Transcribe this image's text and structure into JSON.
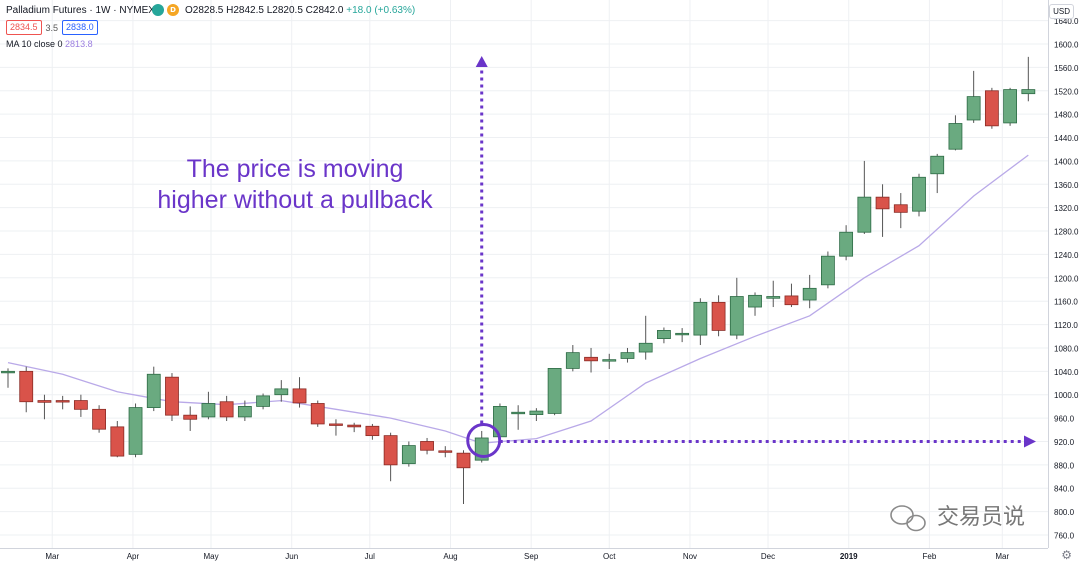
{
  "header": {
    "title": "Palladium Futures · 1W · NYMEX",
    "dot1": "",
    "dot2": "D",
    "ohlc": "O2828.5 H2842.5 L2820.5 C2842.0",
    "change": "+18.0 (+0.63%)",
    "bid": "2834.5",
    "spread": "3.5",
    "ask": "2838.0",
    "ma_label": "MA 10 close 0",
    "ma_value": "2813.8",
    "currency": "USD"
  },
  "colors": {
    "up": "#6aaa80",
    "up_stroke": "#2d6b45",
    "down": "#d9534a",
    "down_stroke": "#8a2b25",
    "ma": "#b9a9e8",
    "annotation": "#6a35c9",
    "grid": "#eef0f3"
  },
  "annotation": {
    "line1": "The price is moving",
    "line2": "higher without a pullback",
    "marker_level": 920,
    "marker_date": "2018-08-13"
  },
  "watermark": "交易员说",
  "chart_data": {
    "type": "candlestick",
    "interval": "1W",
    "ylim": [
      730,
      1640
    ],
    "y_ticks": [
      760,
      800,
      840,
      880,
      920,
      960,
      1000,
      1040,
      1080,
      1120,
      1160,
      1200,
      1240,
      1280,
      1320,
      1360,
      1400,
      1440,
      1480,
      1520,
      1560,
      1600,
      1640
    ],
    "x_labels": [
      {
        "label": "Mar",
        "date": "2018-03-01"
      },
      {
        "label": "Apr",
        "date": "2018-04-01"
      },
      {
        "label": "May",
        "date": "2018-05-01"
      },
      {
        "label": "Jun",
        "date": "2018-06-01"
      },
      {
        "label": "Jul",
        "date": "2018-07-01"
      },
      {
        "label": "Aug",
        "date": "2018-08-01"
      },
      {
        "label": "Sep",
        "date": "2018-09-01"
      },
      {
        "label": "Oct",
        "date": "2018-10-01"
      },
      {
        "label": "Nov",
        "date": "2018-11-01"
      },
      {
        "label": "Dec",
        "date": "2018-12-01"
      },
      {
        "label": "2019",
        "date": "2019-01-01"
      },
      {
        "label": "Feb",
        "date": "2019-02-01"
      },
      {
        "label": "Mar",
        "date": "2019-03-01"
      }
    ],
    "candles": [
      {
        "date": "2018-02-12",
        "o": 1040,
        "h": 1045,
        "l": 1012,
        "c": 1040
      },
      {
        "date": "2018-02-19",
        "o": 1040,
        "h": 1048,
        "l": 970,
        "c": 988
      },
      {
        "date": "2018-02-26",
        "o": 990,
        "h": 1000,
        "l": 958,
        "c": 987
      },
      {
        "date": "2018-03-05",
        "o": 990,
        "h": 998,
        "l": 975,
        "c": 988
      },
      {
        "date": "2018-03-12",
        "o": 990,
        "h": 1000,
        "l": 962,
        "c": 975
      },
      {
        "date": "2018-03-19",
        "o": 975,
        "h": 982,
        "l": 935,
        "c": 941
      },
      {
        "date": "2018-03-26",
        "o": 945,
        "h": 955,
        "l": 893,
        "c": 895
      },
      {
        "date": "2018-04-02",
        "o": 898,
        "h": 985,
        "l": 893,
        "c": 978
      },
      {
        "date": "2018-04-09",
        "o": 978,
        "h": 1048,
        "l": 972,
        "c": 1035
      },
      {
        "date": "2018-04-16",
        "o": 1030,
        "h": 1037,
        "l": 955,
        "c": 965
      },
      {
        "date": "2018-04-23",
        "o": 965,
        "h": 980,
        "l": 938,
        "c": 958
      },
      {
        "date": "2018-04-30",
        "o": 962,
        "h": 1005,
        "l": 958,
        "c": 985
      },
      {
        "date": "2018-05-07",
        "o": 988,
        "h": 998,
        "l": 955,
        "c": 962
      },
      {
        "date": "2018-05-14",
        "o": 962,
        "h": 990,
        "l": 955,
        "c": 980
      },
      {
        "date": "2018-05-21",
        "o": 980,
        "h": 1002,
        "l": 975,
        "c": 998
      },
      {
        "date": "2018-05-28",
        "o": 1000,
        "h": 1025,
        "l": 988,
        "c": 1010
      },
      {
        "date": "2018-06-04",
        "o": 1010,
        "h": 1030,
        "l": 978,
        "c": 986
      },
      {
        "date": "2018-06-11",
        "o": 985,
        "h": 990,
        "l": 945,
        "c": 950
      },
      {
        "date": "2018-06-18",
        "o": 950,
        "h": 958,
        "l": 930,
        "c": 948
      },
      {
        "date": "2018-06-25",
        "o": 948,
        "h": 952,
        "l": 936,
        "c": 945
      },
      {
        "date": "2018-07-02",
        "o": 946,
        "h": 950,
        "l": 923,
        "c": 930
      },
      {
        "date": "2018-07-09",
        "o": 930,
        "h": 935,
        "l": 852,
        "c": 880
      },
      {
        "date": "2018-07-16",
        "o": 882,
        "h": 920,
        "l": 877,
        "c": 913
      },
      {
        "date": "2018-07-23",
        "o": 920,
        "h": 926,
        "l": 898,
        "c": 905
      },
      {
        "date": "2018-07-30",
        "o": 904,
        "h": 912,
        "l": 893,
        "c": 903
      },
      {
        "date": "2018-08-06",
        "o": 900,
        "h": 905,
        "l": 813,
        "c": 875
      },
      {
        "date": "2018-08-13",
        "o": 888,
        "h": 938,
        "l": 884,
        "c": 926
      },
      {
        "date": "2018-08-20",
        "o": 928,
        "h": 985,
        "l": 925,
        "c": 980
      },
      {
        "date": "2018-08-27",
        "o": 969,
        "h": 982,
        "l": 940,
        "c": 970
      },
      {
        "date": "2018-09-03",
        "o": 966,
        "h": 977,
        "l": 955,
        "c": 972
      },
      {
        "date": "2018-09-10",
        "o": 968,
        "h": 1045,
        "l": 965,
        "c": 1045
      },
      {
        "date": "2018-09-17",
        "o": 1045,
        "h": 1085,
        "l": 1040,
        "c": 1072
      },
      {
        "date": "2018-09-24",
        "o": 1064,
        "h": 1080,
        "l": 1038,
        "c": 1058
      },
      {
        "date": "2018-10-01",
        "o": 1058,
        "h": 1070,
        "l": 1044,
        "c": 1060
      },
      {
        "date": "2018-10-08",
        "o": 1062,
        "h": 1080,
        "l": 1055,
        "c": 1072
      },
      {
        "date": "2018-10-15",
        "o": 1073,
        "h": 1135,
        "l": 1060,
        "c": 1088
      },
      {
        "date": "2018-10-22",
        "o": 1096,
        "h": 1115,
        "l": 1088,
        "c": 1110
      },
      {
        "date": "2018-10-29",
        "o": 1104,
        "h": 1114,
        "l": 1090,
        "c": 1105
      },
      {
        "date": "2018-11-05",
        "o": 1102,
        "h": 1165,
        "l": 1085,
        "c": 1158
      },
      {
        "date": "2018-11-12",
        "o": 1158,
        "h": 1170,
        "l": 1100,
        "c": 1110
      },
      {
        "date": "2018-11-19",
        "o": 1102,
        "h": 1200,
        "l": 1095,
        "c": 1168
      },
      {
        "date": "2018-11-26",
        "o": 1150,
        "h": 1175,
        "l": 1135,
        "c": 1170
      },
      {
        "date": "2018-12-03",
        "o": 1165,
        "h": 1195,
        "l": 1150,
        "c": 1168
      },
      {
        "date": "2018-12-10",
        "o": 1169,
        "h": 1190,
        "l": 1150,
        "c": 1154
      },
      {
        "date": "2018-12-17",
        "o": 1162,
        "h": 1205,
        "l": 1148,
        "c": 1182
      },
      {
        "date": "2018-12-24",
        "o": 1188,
        "h": 1245,
        "l": 1182,
        "c": 1237
      },
      {
        "date": "2018-12-31",
        "o": 1237,
        "h": 1290,
        "l": 1230,
        "c": 1278
      },
      {
        "date": "2019-01-07",
        "o": 1278,
        "h": 1400,
        "l": 1275,
        "c": 1338
      },
      {
        "date": "2019-01-14",
        "o": 1338,
        "h": 1360,
        "l": 1270,
        "c": 1318
      },
      {
        "date": "2019-01-21",
        "o": 1325,
        "h": 1345,
        "l": 1285,
        "c": 1312
      },
      {
        "date": "2019-01-28",
        "o": 1314,
        "h": 1378,
        "l": 1305,
        "c": 1372
      },
      {
        "date": "2019-02-04",
        "o": 1378,
        "h": 1412,
        "l": 1345,
        "c": 1408
      },
      {
        "date": "2019-02-11",
        "o": 1420,
        "h": 1478,
        "l": 1418,
        "c": 1464
      },
      {
        "date": "2019-02-18",
        "o": 1470,
        "h": 1554,
        "l": 1465,
        "c": 1510
      },
      {
        "date": "2019-02-25",
        "o": 1520,
        "h": 1525,
        "l": 1455,
        "c": 1460
      },
      {
        "date": "2019-03-04",
        "o": 1465,
        "h": 1525,
        "l": 1460,
        "c": 1522
      },
      {
        "date": "2019-03-11",
        "o": 1515,
        "h": 1578,
        "l": 1502,
        "c": 1522
      }
    ],
    "ma10": [
      {
        "date": "2018-02-12",
        "v": 1055
      },
      {
        "date": "2018-03-05",
        "v": 1035
      },
      {
        "date": "2018-03-26",
        "v": 1005
      },
      {
        "date": "2018-04-16",
        "v": 988
      },
      {
        "date": "2018-05-07",
        "v": 983
      },
      {
        "date": "2018-05-28",
        "v": 990
      },
      {
        "date": "2018-06-18",
        "v": 975
      },
      {
        "date": "2018-07-09",
        "v": 960
      },
      {
        "date": "2018-07-30",
        "v": 938
      },
      {
        "date": "2018-08-13",
        "v": 917
      },
      {
        "date": "2018-09-03",
        "v": 925
      },
      {
        "date": "2018-09-24",
        "v": 955
      },
      {
        "date": "2018-10-15",
        "v": 1020
      },
      {
        "date": "2018-11-05",
        "v": 1062
      },
      {
        "date": "2018-11-26",
        "v": 1100
      },
      {
        "date": "2018-12-17",
        "v": 1135
      },
      {
        "date": "2019-01-07",
        "v": 1200
      },
      {
        "date": "2019-01-28",
        "v": 1255
      },
      {
        "date": "2019-02-18",
        "v": 1340
      },
      {
        "date": "2019-03-11",
        "v": 1410
      }
    ]
  }
}
